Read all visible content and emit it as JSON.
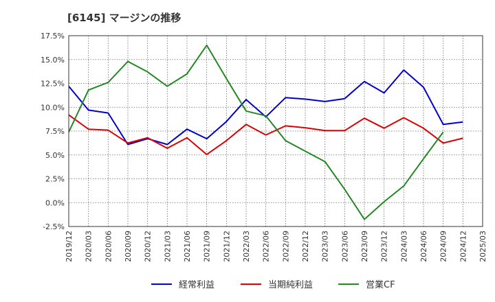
{
  "chart_data": {
    "type": "line",
    "title": "[6145]  マージンの推移",
    "xlabel": "",
    "ylabel": "",
    "ylim": [
      -2.5,
      17.5
    ],
    "yticks": [
      "17.5%",
      "15.0%",
      "12.5%",
      "10.0%",
      "7.5%",
      "5.0%",
      "2.5%",
      "0.0%",
      "-2.5%"
    ],
    "ytick_values": [
      17.5,
      15.0,
      12.5,
      10.0,
      7.5,
      5.0,
      2.5,
      0.0,
      -2.5
    ],
    "categories": [
      "2019/12",
      "2020/03",
      "2020/06",
      "2020/09",
      "2020/12",
      "2021/03",
      "2021/06",
      "2021/09",
      "2021/12",
      "2022/03",
      "2022/06",
      "2022/09",
      "2022/12",
      "2023/03",
      "2023/06",
      "2023/09",
      "2023/12",
      "2024/03",
      "2024/06",
      "2024/09",
      "2024/12",
      "2025/03"
    ],
    "grid": true,
    "legend_position": "bottom",
    "series": [
      {
        "name": "経常利益",
        "color": "#0000cc",
        "values": [
          12.2,
          9.7,
          9.4,
          6.1,
          6.7,
          6.1,
          7.7,
          6.7,
          8.5,
          10.8,
          9.0,
          11.0,
          10.85,
          10.6,
          10.9,
          12.7,
          11.5,
          13.9,
          12.1,
          8.2,
          8.45,
          null
        ]
      },
      {
        "name": "当期純利益",
        "color": "#dd0000",
        "values": [
          9.2,
          7.7,
          7.6,
          6.25,
          6.8,
          5.7,
          6.8,
          5.05,
          6.5,
          8.2,
          7.1,
          8.05,
          7.85,
          7.55,
          7.55,
          8.85,
          7.8,
          8.9,
          7.8,
          6.25,
          6.75,
          null
        ]
      },
      {
        "name": "営業CF",
        "color": "#228822",
        "values": [
          7.4,
          11.8,
          12.6,
          14.8,
          13.7,
          12.2,
          13.5,
          16.5,
          13.0,
          9.6,
          9.1,
          6.5,
          5.4,
          4.3,
          1.4,
          -1.75,
          0.1,
          1.75,
          4.6,
          7.4,
          null,
          null
        ]
      }
    ]
  }
}
